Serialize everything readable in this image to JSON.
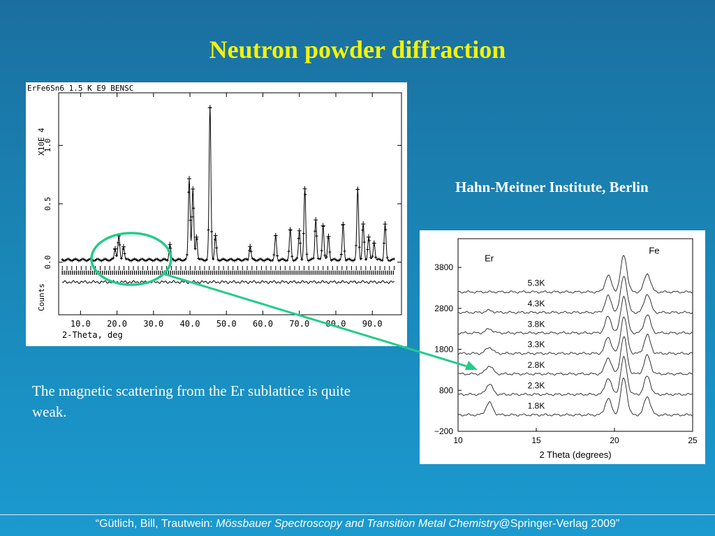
{
  "slide": {
    "title": "Neutron powder diffraction",
    "institute": "Hahn-Meitner Institute, Berlin",
    "caption": "The magnetic scattering from the Er sublattice is quite weak.",
    "footer_prefix": "“Gütlich, Bill, Trautwein: ",
    "footer_italic": "Mössbauer Spectroscopy and Transition Metal Chemistry",
    "footer_suffix": "@Springer-Verlag 2009”",
    "accent_title": "#f4f20a",
    "highlight_color": "#22cc88"
  },
  "chart_data": [
    {
      "type": "line",
      "title": "ErFe6Sn6 1.5 K E9 BENSC",
      "xlabel": "2-Theta, deg",
      "ylabel": "Counts",
      "y_scale_label": "X10E  4",
      "xlim": [
        4,
        98
      ],
      "ylim": [
        -0.45,
        1.45
      ],
      "xticks": [
        "10.0",
        "20.0",
        "30.0",
        "40.0",
        "50.0",
        "60.0",
        "70.0",
        "80.0",
        "90.0"
      ],
      "yticks": [
        "0.0",
        "0.5",
        "1.0"
      ],
      "baseline": 0.02,
      "peaks": [
        {
          "x": 19.5,
          "y": 0.1
        },
        {
          "x": 20.5,
          "y": 0.2
        },
        {
          "x": 21.8,
          "y": 0.12
        },
        {
          "x": 34.5,
          "y": 0.13
        },
        {
          "x": 39.8,
          "y": 0.7
        },
        {
          "x": 40.8,
          "y": 0.6
        },
        {
          "x": 41.8,
          "y": 0.2
        },
        {
          "x": 45.5,
          "y": 1.3
        },
        {
          "x": 47.0,
          "y": 0.2
        },
        {
          "x": 56.5,
          "y": 0.12
        },
        {
          "x": 63.5,
          "y": 0.2
        },
        {
          "x": 67.5,
          "y": 0.25
        },
        {
          "x": 70.0,
          "y": 0.25
        },
        {
          "x": 71.5,
          "y": 0.6
        },
        {
          "x": 74.5,
          "y": 0.35
        },
        {
          "x": 76.5,
          "y": 0.3
        },
        {
          "x": 78.0,
          "y": 0.2
        },
        {
          "x": 82.0,
          "y": 0.3
        },
        {
          "x": 86.0,
          "y": 0.6
        },
        {
          "x": 87.5,
          "y": 0.3
        },
        {
          "x": 89.0,
          "y": 0.2
        },
        {
          "x": 90.5,
          "y": 0.15
        },
        {
          "x": 93.5,
          "y": 0.3
        }
      ]
    },
    {
      "type": "line",
      "xlabel": "2 Theta (degrees)",
      "xlim": [
        10,
        25
      ],
      "ylim": [
        -200,
        4500
      ],
      "xticks": [
        "10",
        "15",
        "20",
        "25"
      ],
      "yticks": [
        "3800",
        "2800",
        "1800",
        "800",
        "−200"
      ],
      "annotations": [
        "Er",
        "Fe"
      ],
      "series": [
        {
          "name": "5.3K",
          "offset": 3200
        },
        {
          "name": "4.3K",
          "offset": 2700
        },
        {
          "name": "3.8K",
          "offset": 2200
        },
        {
          "name": "3.3K",
          "offset": 1700
        },
        {
          "name": "2.8K",
          "offset": 1200
        },
        {
          "name": "2.3K",
          "offset": 700
        },
        {
          "name": "1.8K",
          "offset": 200
        }
      ],
      "peaks": [
        {
          "x": 19.6,
          "y": 400
        },
        {
          "x": 20.6,
          "y": 900
        },
        {
          "x": 22.1,
          "y": 450
        }
      ],
      "er_peak": {
        "x": 12.0,
        "max_height": 300
      }
    }
  ]
}
